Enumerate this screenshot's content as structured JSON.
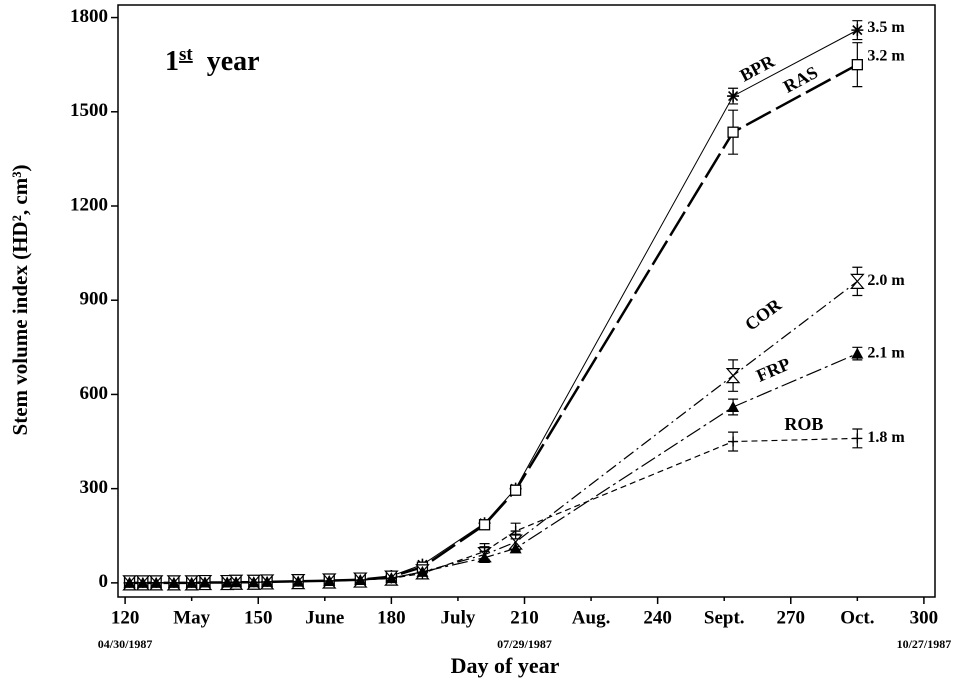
{
  "chart_data": {
    "type": "line",
    "title": {
      "num": "1",
      "ord": "st",
      "rest": "year"
    },
    "xlabel": "Day of year",
    "ylabel": "Stem volume index (HD², cm³)",
    "xlim": [
      118.4,
      302.5
    ],
    "ylim": [
      -45,
      1840
    ],
    "xticks": [
      120,
      {
        "value": 135,
        "label": "May"
      },
      150,
      {
        "value": 165,
        "label": "June"
      },
      180,
      {
        "value": 195,
        "label": "July"
      },
      210,
      {
        "value": 225,
        "label": "Aug."
      },
      240,
      {
        "value": 255,
        "label": "Sept."
      },
      270,
      {
        "value": 285,
        "label": "Oct."
      },
      300
    ],
    "x_date_labels": [
      {
        "value": 120,
        "label": "04/30/1987"
      },
      {
        "value": 210,
        "label": "07/29/1987"
      },
      {
        "value": 300,
        "label": "10/27/1987"
      }
    ],
    "yticks": [
      0,
      300,
      600,
      900,
      1200,
      1500,
      1800
    ],
    "grid": false,
    "x": [
      121,
      124,
      127,
      131,
      135,
      138,
      143,
      145,
      149,
      152,
      159,
      166,
      173,
      180,
      187,
      201,
      208,
      257,
      285
    ],
    "series": [
      {
        "name": "BPR",
        "end_label": "3.5 m",
        "color": "#000",
        "marker": "asterisk",
        "dash": "none",
        "width": 1,
        "values": [
          0,
          0,
          0,
          0,
          0,
          1,
          1,
          2,
          2,
          3,
          5,
          7,
          10,
          22,
          58,
          190,
          300,
          1550,
          1760
        ],
        "errors": [
          null,
          null,
          null,
          null,
          null,
          null,
          null,
          null,
          null,
          null,
          null,
          null,
          null,
          null,
          null,
          null,
          null,
          25,
          30
        ]
      },
      {
        "name": "RAS",
        "end_label": "3.2 m",
        "color": "#000",
        "marker": "square",
        "dash": "28 6",
        "width": 2.5,
        "values": [
          0,
          0,
          0,
          0,
          0,
          1,
          1,
          2,
          2,
          3,
          5,
          7,
          10,
          20,
          50,
          185,
          295,
          1435,
          1650
        ],
        "errors": [
          null,
          null,
          null,
          null,
          null,
          null,
          null,
          null,
          null,
          null,
          null,
          null,
          null,
          null,
          null,
          null,
          null,
          70,
          70
        ]
      },
      {
        "name": "COR",
        "end_label": "2.0 m",
        "color": "#000",
        "marker": "hourglass",
        "dash": "12 4 2 4",
        "width": 1.2,
        "values": [
          0,
          0,
          0,
          0,
          0,
          1,
          1,
          2,
          2,
          3,
          4,
          6,
          9,
          15,
          35,
          90,
          130,
          660,
          960
        ],
        "errors": [
          null,
          null,
          null,
          null,
          null,
          null,
          null,
          null,
          null,
          null,
          null,
          null,
          null,
          null,
          null,
          25,
          25,
          50,
          45
        ]
      },
      {
        "name": "FRP",
        "end_label": "2.1 m",
        "color": "#000",
        "marker": "triangle",
        "dash": "16 4 3 4",
        "width": 1.2,
        "values": [
          0,
          0,
          0,
          0,
          0,
          1,
          1,
          2,
          2,
          3,
          4,
          6,
          9,
          15,
          35,
          80,
          110,
          560,
          730
        ],
        "errors": [
          null,
          null,
          null,
          null,
          null,
          null,
          null,
          null,
          null,
          null,
          null,
          null,
          null,
          null,
          null,
          null,
          null,
          25,
          20
        ]
      },
      {
        "name": "ROB",
        "end_label": "1.8 m",
        "color": "#000",
        "marker": "plus",
        "dash": "6 4",
        "width": 1.2,
        "values": [
          0,
          0,
          0,
          0,
          0,
          1,
          1,
          2,
          2,
          3,
          4,
          6,
          9,
          14,
          30,
          100,
          165,
          450,
          460
        ],
        "errors": [
          null,
          null,
          null,
          null,
          null,
          null,
          null,
          null,
          null,
          null,
          null,
          null,
          null,
          null,
          null,
          25,
          25,
          30,
          30
        ]
      }
    ]
  }
}
